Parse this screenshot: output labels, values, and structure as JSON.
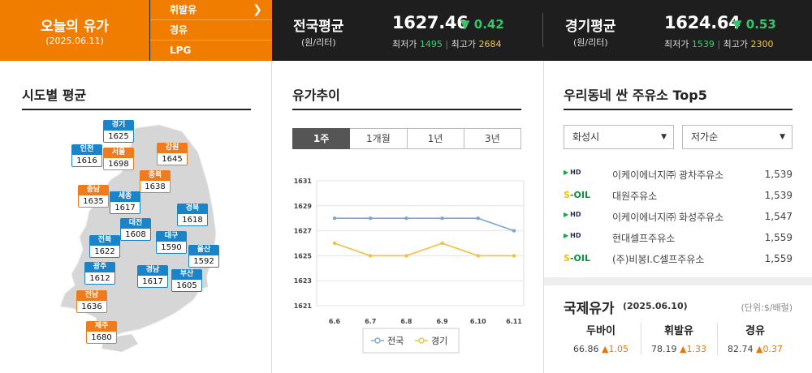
{
  "header": {
    "today_title": "오늘의 유가",
    "today_date": "(2025.06.11)",
    "fuel_menu": [
      "휘발유",
      "경유",
      "LPG"
    ],
    "chevron": "chevron-right-icon",
    "national": {
      "name": "전국평균",
      "unit": "(원/리터)",
      "price": "1627.46",
      "change": "▼ 0.42",
      "min_label": "최저가",
      "min": "1495",
      "max_label": "최고가",
      "max": "2684"
    },
    "gyeonggi": {
      "name": "경기평균",
      "unit": "(원/리터)",
      "price": "1624.64",
      "change": "▼ 0.53",
      "min_label": "최저가",
      "min": "1539",
      "max_label": "최고가",
      "max": "2300"
    },
    "colors": {
      "orange": "#f07d00",
      "dark": "#1e1e1e",
      "down": "#37c46b"
    }
  },
  "sido": {
    "title": "시도별 평균",
    "regions": [
      {
        "name": "경기",
        "price": "1625",
        "color": "blue"
      },
      {
        "name": "인천",
        "price": "1616",
        "color": "blue"
      },
      {
        "name": "서울",
        "price": "1698",
        "color": "orange"
      },
      {
        "name": "강원",
        "price": "1645",
        "color": "orange"
      },
      {
        "name": "충북",
        "price": "1638",
        "color": "orange"
      },
      {
        "name": "충남",
        "price": "1635",
        "color": "orange"
      },
      {
        "name": "세종",
        "price": "1617",
        "color": "blue"
      },
      {
        "name": "경북",
        "price": "1618",
        "color": "blue"
      },
      {
        "name": "대전",
        "price": "1608",
        "color": "blue"
      },
      {
        "name": "전북",
        "price": "1622",
        "color": "blue"
      },
      {
        "name": "대구",
        "price": "1590",
        "color": "blue"
      },
      {
        "name": "울산",
        "price": "1592",
        "color": "blue"
      },
      {
        "name": "광주",
        "price": "1612",
        "color": "blue"
      },
      {
        "name": "경남",
        "price": "1617",
        "color": "blue"
      },
      {
        "name": "부산",
        "price": "1605",
        "color": "blue"
      },
      {
        "name": "전남",
        "price": "1636",
        "color": "orange"
      },
      {
        "name": "제주",
        "price": "1680",
        "color": "orange"
      }
    ]
  },
  "trend": {
    "title": "유가추이",
    "tabs": [
      "1주",
      "1개월",
      "1년",
      "3년"
    ],
    "active_tab": "1주"
  },
  "chart_data": {
    "type": "line",
    "categories": [
      "6.6",
      "6.7",
      "6.8",
      "6.9",
      "6.10",
      "6.11"
    ],
    "series": [
      {
        "name": "전국",
        "values": [
          1628,
          1628,
          1628,
          1628,
          1628,
          1627
        ],
        "color": "#7aa6d6"
      },
      {
        "name": "경기",
        "values": [
          1626,
          1625,
          1625,
          1626,
          1625,
          1625
        ],
        "color": "#f0c040"
      }
    ],
    "yticks": [
      1621,
      1623,
      1625,
      1627,
      1629,
      1631
    ],
    "ylim": [
      1621,
      1631
    ],
    "grid": true,
    "legend": "bottom"
  },
  "top5": {
    "title": "우리동네 싼 주유소 Top5",
    "region_select": "화성시",
    "sort_select": "저가순",
    "stations": [
      {
        "brand": "HD",
        "name": "이케이에너지㈜ 광차주유소",
        "price": "1,539"
      },
      {
        "brand": "S-OIL",
        "name": "대원주유소",
        "price": "1,539"
      },
      {
        "brand": "HD",
        "name": "이케이에너지㈜ 화성주유소",
        "price": "1,547"
      },
      {
        "brand": "HD",
        "name": "현대셀프주유소",
        "price": "1,559"
      },
      {
        "brand": "S-OIL",
        "name": "(주)비봉I.C셀프주유소",
        "price": "1,559"
      }
    ]
  },
  "intl": {
    "title": "국제유가",
    "date": "(2025.06.10)",
    "unit": "(단위:$/배럴)",
    "items": [
      {
        "name": "두바이",
        "value": "66.86",
        "change": "▲1.05"
      },
      {
        "name": "휘발유",
        "value": "78.19",
        "change": "▲1.33"
      },
      {
        "name": "경유",
        "value": "82.74",
        "change": "▲0.37"
      }
    ]
  }
}
